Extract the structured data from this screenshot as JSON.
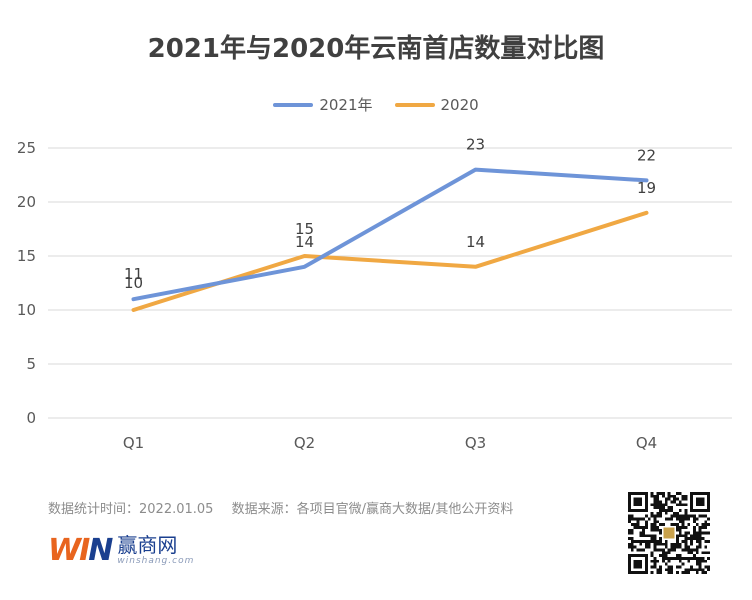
{
  "chart_data": {
    "type": "line",
    "title": "2021年与2020年云南首店数量对比图",
    "categories": [
      "Q1",
      "Q2",
      "Q3",
      "Q4"
    ],
    "series": [
      {
        "name": "2021年",
        "values": [
          11,
          14,
          23,
          22
        ],
        "color": "#6e94d8"
      },
      {
        "name": "2020",
        "values": [
          10,
          15,
          14,
          19
        ],
        "color": "#f0a843"
      }
    ],
    "ylim": [
      0,
      25
    ],
    "yticks": [
      0,
      5,
      10,
      15,
      20,
      25
    ],
    "grid": true,
    "legend_position": "top",
    "xlabel": "",
    "ylabel": ""
  },
  "footer": {
    "stat_time": "数据统计时间：2022.01.05",
    "source": "数据来源：各项目官微/赢商大数据/其他公开资料"
  },
  "logo": {
    "mark": "WIN",
    "cn": "赢商网",
    "en": "winshang.com"
  },
  "icons": {
    "qr": "qr-code-icon"
  }
}
